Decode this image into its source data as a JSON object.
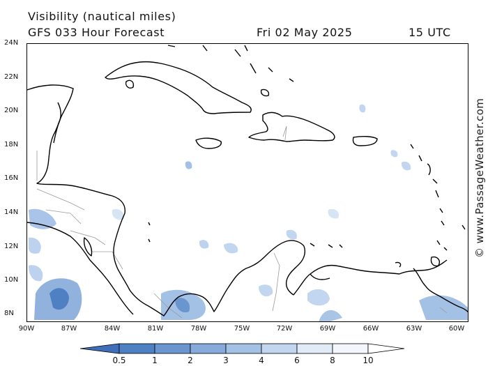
{
  "header": {
    "title": "Visibility (nautical miles)",
    "model": "GFS 033 Hour Forecast",
    "date": "Fri 02 May 2025",
    "time": "15 UTC"
  },
  "map": {
    "region": "Caribbean Sea",
    "lat_ticks": [
      "24N",
      "22N",
      "20N",
      "18N",
      "16N",
      "14N",
      "12N",
      "10N",
      "8N"
    ],
    "lon_ticks": [
      "90W",
      "87W",
      "84W",
      "81W",
      "78W",
      "75W",
      "72W",
      "69W",
      "66W",
      "63W",
      "60W"
    ],
    "lat_range": [
      7.5,
      24
    ],
    "lon_range": [
      -90,
      -59.3
    ]
  },
  "credit": "© www.PassageWeather.com",
  "colorbar": {
    "labels": [
      "0.5",
      "1",
      "2",
      "3",
      "4",
      "6",
      "8",
      "10"
    ],
    "colors": [
      "#3f6fb8",
      "#4f80c4",
      "#6a95cf",
      "#86abda",
      "#a3c1e5",
      "#c2d6ef",
      "#e0ebf7",
      "#f7fafd"
    ]
  }
}
